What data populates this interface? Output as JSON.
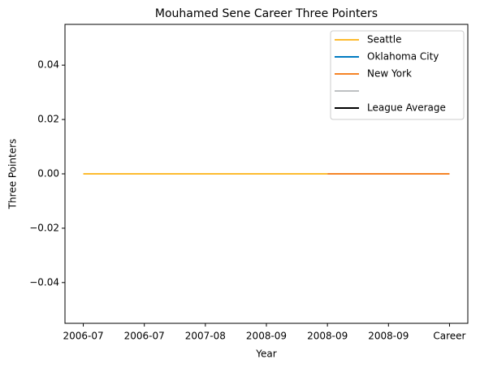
{
  "chart_data": {
    "type": "line",
    "title": "Mouhamed Sene Career Three Pointers",
    "xlabel": "Year",
    "ylabel": "Three Pointers",
    "categories": [
      "2006-07",
      "2006-07",
      "2007-08",
      "2008-09",
      "2008-09",
      "2008-09",
      "Career"
    ],
    "series": [
      {
        "name": "Seattle",
        "color": "#fdbb30",
        "values": [
          0,
          0,
          0,
          0,
          0,
          null,
          null
        ]
      },
      {
        "name": "Oklahoma City",
        "color": "#007ac1",
        "values": [
          null,
          null,
          null,
          null,
          null,
          null,
          null
        ]
      },
      {
        "name": "New York",
        "color": "#f58426",
        "values": [
          null,
          null,
          null,
          null,
          0,
          0,
          0
        ]
      },
      {
        "color": "#bec0c2",
        "values": [
          null,
          null,
          null,
          null,
          null,
          null,
          null
        ]
      },
      {
        "name": "League Average",
        "color": "#000000",
        "values": [
          null,
          null,
          null,
          null,
          null,
          null,
          null
        ]
      }
    ],
    "ylim": [
      -0.055,
      0.055
    ],
    "yticks": [
      {
        "value": -0.04,
        "label": "−0.04"
      },
      {
        "value": -0.02,
        "label": "−0.02"
      },
      {
        "value": 0,
        "label": "0.00"
      },
      {
        "value": 0.02,
        "label": "0.02"
      },
      {
        "value": 0.04,
        "label": "0.04"
      }
    ],
    "grid": false,
    "legend": "upper right"
  }
}
